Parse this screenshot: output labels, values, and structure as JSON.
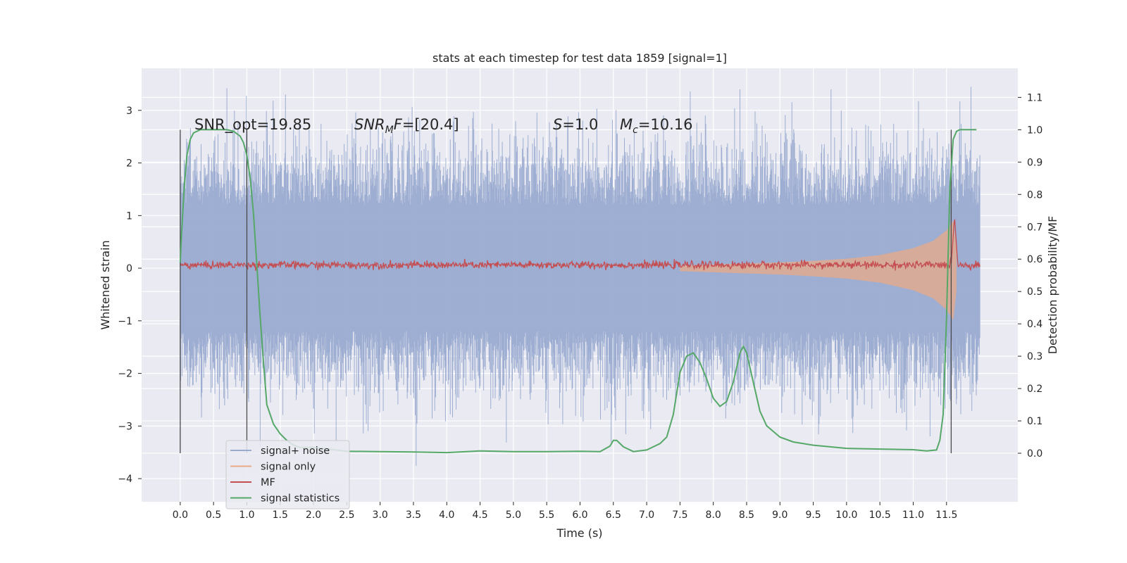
{
  "chart_data": {
    "type": "line",
    "title": "stats at each timestep for test data 1859 [signal=1]",
    "xlabel": "Time (s)",
    "ylabel": "Whitened strain",
    "y2label": "Detection probability/MF",
    "xlim": [
      -0.58,
      12.57
    ],
    "ylim": [
      -4.44,
      3.8
    ],
    "y2lim": [
      -0.15,
      1.19
    ],
    "grid": true,
    "legend_position": "lower-left",
    "x_ticks": [
      "0.0",
      "0.5",
      "1.0",
      "1.5",
      "2.0",
      "2.5",
      "3.0",
      "3.5",
      "4.0",
      "4.5",
      "5.0",
      "5.5",
      "6.0",
      "6.5",
      "7.0",
      "7.5",
      "8.0",
      "8.5",
      "9.0",
      "9.5",
      "10.0",
      "10.5",
      "11.0",
      "11.5"
    ],
    "y_ticks": [
      "3",
      "2",
      "1",
      "0",
      "−1",
      "−2",
      "−3",
      "−4"
    ],
    "y_tick_values": [
      3,
      2,
      1,
      0,
      -1,
      -2,
      -3,
      -4
    ],
    "y2_ticks": [
      "0.0",
      "0.1",
      "0.2",
      "0.3",
      "0.4",
      "0.5",
      "0.6",
      "0.7",
      "0.8",
      "0.9",
      "1.0",
      "1.1"
    ],
    "annotations": {
      "snr_opt": "SNR_opt=19.85",
      "snr_mf_name": "SNR",
      "snr_mf_sub": "M",
      "snr_mf_tail": "F",
      "snr_mf_value": "=[20.4]",
      "s_name": "S",
      "s_value": "=1.0",
      "mc_name": "M",
      "mc_sub": "c",
      "mc_value": "=10.16"
    },
    "vertical_markers_x": [
      0.0,
      1.0,
      11.57
    ],
    "series": [
      {
        "name": "signal+ noise",
        "color": "#9aabd0",
        "duration": 12.0,
        "envelope_max": 2.3,
        "envelope_min": -2.3,
        "noise_std": 0.65
      },
      {
        "name": "signal only",
        "color": "#dd8452",
        "x": [
          7.5,
          8.0,
          8.5,
          9.0,
          9.5,
          10.0,
          10.5,
          11.0,
          11.3,
          11.5,
          11.6,
          11.65
        ],
        "amplitude": [
          0.05,
          0.07,
          0.09,
          0.11,
          0.14,
          0.18,
          0.25,
          0.38,
          0.52,
          0.72,
          0.9,
          0.4
        ]
      },
      {
        "name": "MF",
        "color": "#c44e52",
        "baseline": 0.06,
        "peak_x": 11.62,
        "peak_y": 0.98
      },
      {
        "name": "signal statistics",
        "color": "#55a868",
        "axis": "right",
        "x": [
          0.0,
          0.02,
          0.06,
          0.1,
          0.15,
          0.2,
          0.3,
          0.5,
          0.7,
          0.8,
          0.9,
          0.95,
          1.0,
          1.05,
          1.1,
          1.15,
          1.2,
          1.25,
          1.3,
          1.4,
          1.5,
          1.6,
          1.7,
          1.8,
          2.0,
          2.5,
          3.0,
          3.5,
          4.0,
          4.5,
          5.0,
          5.5,
          6.0,
          6.3,
          6.45,
          6.5,
          6.55,
          6.65,
          6.8,
          7.0,
          7.1,
          7.2,
          7.3,
          7.4,
          7.5,
          7.6,
          7.7,
          7.8,
          7.9,
          8.0,
          8.1,
          8.2,
          8.3,
          8.4,
          8.45,
          8.5,
          8.6,
          8.7,
          8.8,
          9.0,
          9.2,
          9.5,
          10.0,
          10.5,
          11.0,
          11.2,
          11.35,
          11.4,
          11.45,
          11.5,
          11.55,
          11.6,
          11.65,
          11.7,
          11.8,
          11.9,
          11.95
        ],
        "y": [
          0.59,
          0.68,
          0.82,
          0.92,
          0.97,
          0.99,
          1.0,
          1.0,
          1.0,
          0.995,
          0.98,
          0.96,
          0.92,
          0.85,
          0.74,
          0.58,
          0.42,
          0.28,
          0.15,
          0.09,
          0.06,
          0.04,
          0.025,
          0.018,
          0.018,
          0.006,
          0.005,
          0.004,
          0.002,
          0.007,
          0.005,
          0.005,
          0.006,
          0.005,
          0.022,
          0.04,
          0.04,
          0.02,
          0.005,
          0.01,
          0.02,
          0.03,
          0.05,
          0.12,
          0.25,
          0.3,
          0.31,
          0.28,
          0.23,
          0.17,
          0.145,
          0.16,
          0.22,
          0.31,
          0.33,
          0.31,
          0.22,
          0.13,
          0.085,
          0.05,
          0.035,
          0.025,
          0.015,
          0.013,
          0.011,
          0.007,
          0.01,
          0.04,
          0.12,
          0.42,
          0.82,
          0.97,
          0.995,
          1.0,
          1.0,
          1.0,
          1.0
        ]
      }
    ]
  },
  "legend": {
    "items": [
      {
        "label": "signal+ noise",
        "color": "#9aabd0"
      },
      {
        "label": "signal only",
        "color": "#e8a987"
      },
      {
        "label": "MF",
        "color": "#c44e52"
      },
      {
        "label": "signal statistics",
        "color": "#55a868"
      }
    ]
  },
  "colors": {
    "axes_bg": "#eaeaf2",
    "grid": "#ffffff",
    "marker": "#4a4a4a"
  }
}
